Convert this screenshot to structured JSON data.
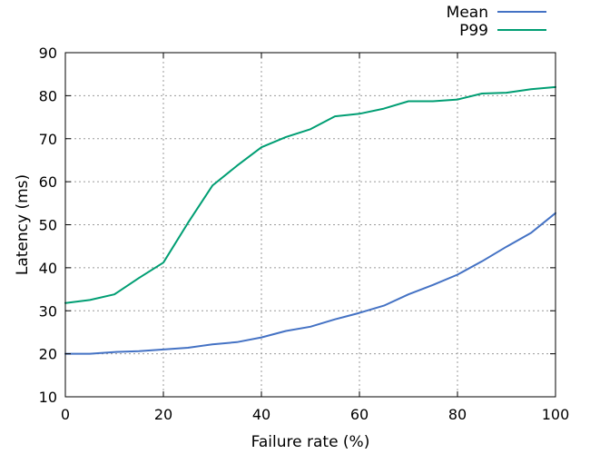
{
  "chart_data": {
    "type": "line",
    "title": "",
    "xlabel": "Failure rate (%)",
    "ylabel": "Latency (ms)",
    "xlim": [
      0,
      100
    ],
    "ylim": [
      10,
      90
    ],
    "xticks": [
      0,
      20,
      40,
      60,
      80,
      100
    ],
    "yticks": [
      10,
      20,
      30,
      40,
      50,
      60,
      70,
      80,
      90
    ],
    "grid": true,
    "legend_position": "top-right",
    "series": [
      {
        "name": "Mean",
        "color": "#4472c4",
        "x": [
          0,
          5,
          10,
          15,
          20,
          25,
          30,
          35,
          40,
          45,
          50,
          55,
          60,
          65,
          70,
          75,
          80,
          85,
          90,
          95,
          100
        ],
        "y": [
          20.0,
          20.0,
          20.4,
          20.6,
          21.0,
          21.4,
          22.2,
          22.7,
          23.8,
          25.3,
          26.3,
          28.0,
          29.5,
          31.2,
          33.8,
          36.0,
          38.4,
          41.5,
          44.9,
          48.1,
          52.7
        ]
      },
      {
        "name": "P99",
        "color": "#009e73",
        "x": [
          0,
          5,
          10,
          15,
          20,
          25,
          30,
          35,
          40,
          45,
          50,
          55,
          60,
          65,
          70,
          75,
          80,
          85,
          90,
          95,
          100
        ],
        "y": [
          31.8,
          32.5,
          33.8,
          37.6,
          41.2,
          50.4,
          59.1,
          63.7,
          68.0,
          70.4,
          72.2,
          75.2,
          75.8,
          77.0,
          78.7,
          78.7,
          79.1,
          80.5,
          80.7,
          81.5,
          82.0
        ]
      }
    ]
  }
}
